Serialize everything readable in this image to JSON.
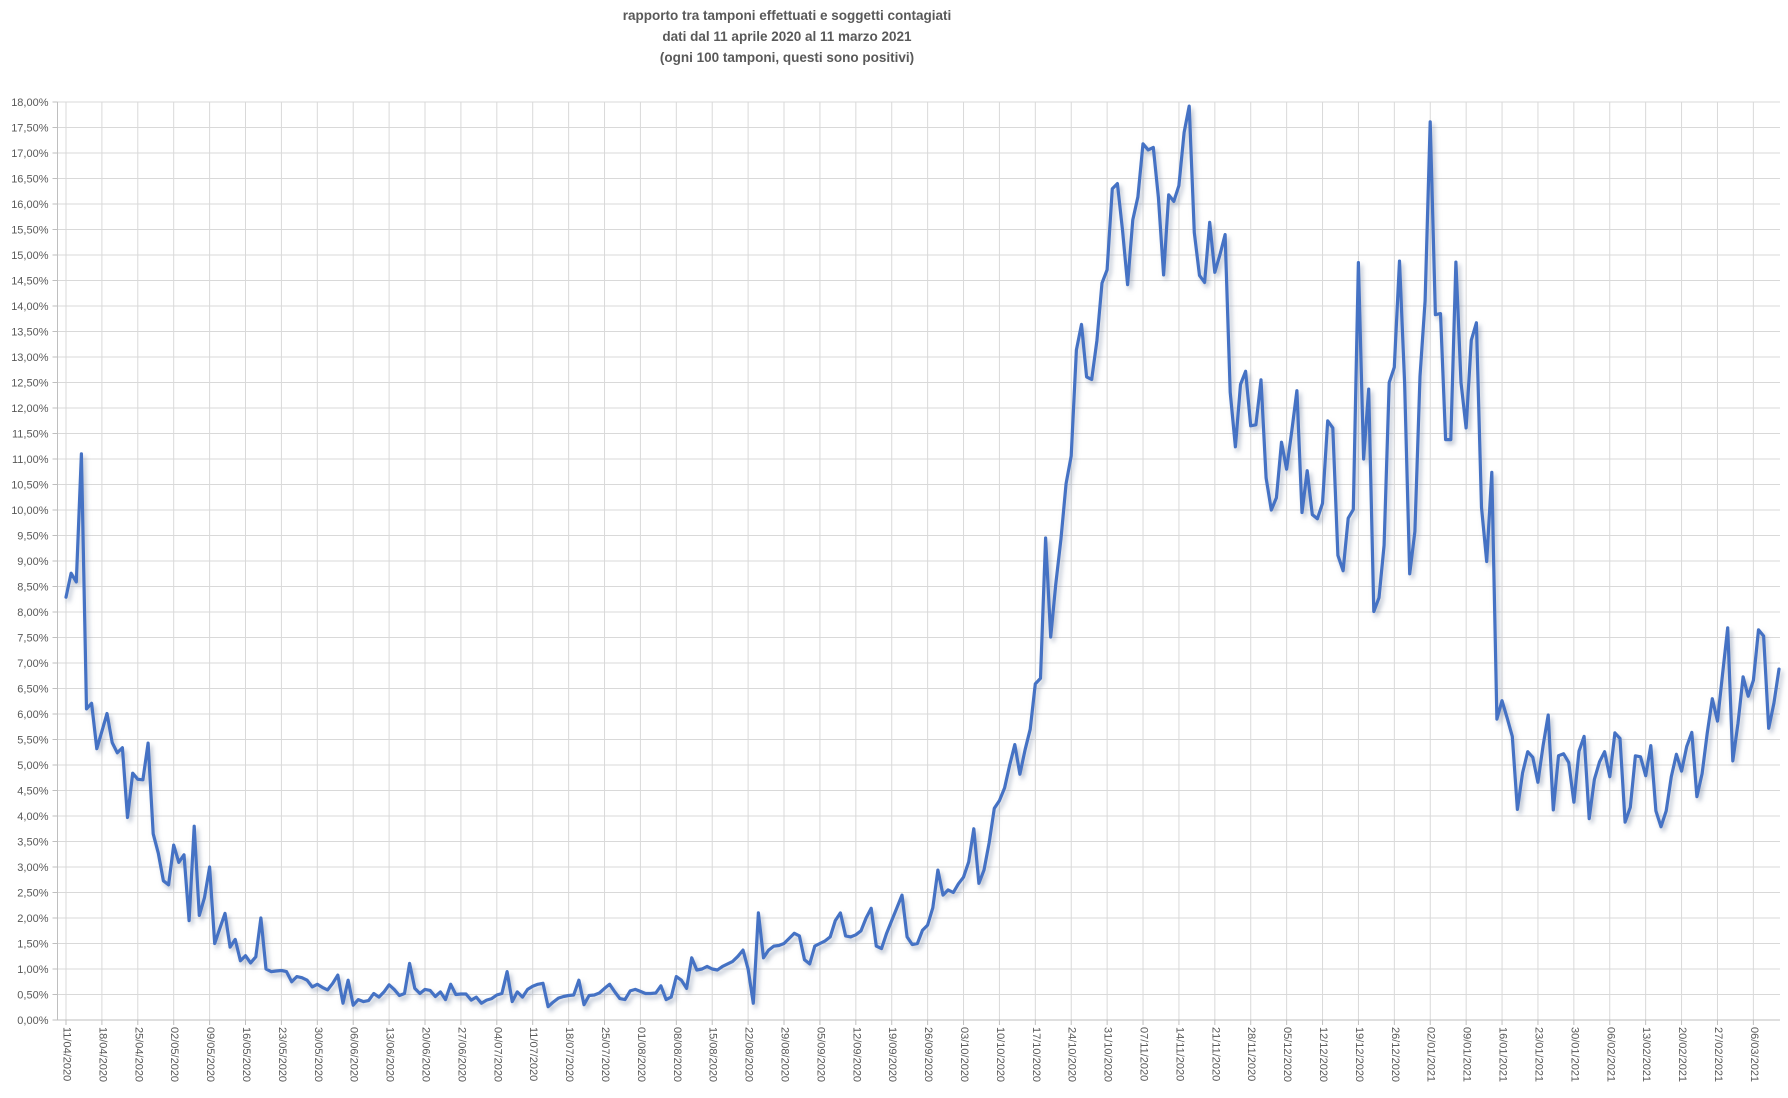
{
  "title": {
    "line1": "rapporto tra tamponi effettuati e soggetti contagiati",
    "line2": "dati dal 11 aprile 2020 al 11 marzo 2021",
    "line3": "(ogni 100 tamponi, questi sono positivi)"
  },
  "chart_data": {
    "type": "line",
    "title": "rapporto tra tamponi effettuati e soggetti contagiati",
    "subtitle": "dati dal 11 aprile 2020 al 11 marzo 2021 (ogni 100 tamponi, questi sono positivi)",
    "xlabel": "",
    "ylabel": "",
    "ylim": [
      0,
      18
    ],
    "y_step": 0.5,
    "grid": true,
    "legend": "none",
    "series_color": "#4472C4",
    "grid_color": "#d9d9d9",
    "axis_color": "#bfbfbf",
    "label_color": "#595959",
    "first_date": "11/04/2020",
    "last_date": "11/03/2021",
    "x_tick_every_days": 7,
    "y_tick_labels": [
      "18,00%",
      "17,50%",
      "17,00%",
      "16,50%",
      "16,00%",
      "15,50%",
      "15,00%",
      "14,50%",
      "14,00%",
      "13,50%",
      "13,00%",
      "12,50%",
      "12,00%",
      "11,50%",
      "11,00%",
      "10,50%",
      "10,00%",
      "9,50%",
      "9,00%",
      "8,50%",
      "8,00%",
      "7,50%",
      "7,00%",
      "6,50%",
      "6,00%",
      "5,50%",
      "5,00%",
      "4,50%",
      "4,00%",
      "3,50%",
      "3,00%",
      "2,50%",
      "2,00%",
      "1,50%",
      "1,00%",
      "0,50%",
      "0,00%"
    ],
    "x_tick_labels": [
      "11/04/2020",
      "18/04/2020",
      "25/04/2020",
      "02/05/2020",
      "09/05/2020",
      "16/05/2020",
      "23/05/2020",
      "30/05/2020",
      "06/06/2020",
      "13/06/2020",
      "20/06/2020",
      "27/06/2020",
      "04/07/2020",
      "11/07/2020",
      "18/07/2020",
      "25/07/2020",
      "01/08/2020",
      "08/08/2020",
      "15/08/2020",
      "22/08/2020",
      "29/08/2020",
      "05/09/2020",
      "12/09/2020",
      "19/09/2020",
      "26/09/2020",
      "03/10/2020",
      "10/10/2020",
      "17/10/2020",
      "24/10/2020",
      "31/10/2020",
      "07/11/2020",
      "14/11/2020",
      "21/11/2020",
      "28/11/2020",
      "05/12/2020",
      "12/12/2020",
      "19/12/2020",
      "26/12/2020",
      "02/01/2021",
      "09/01/2021",
      "16/01/2021",
      "23/01/2021",
      "30/01/2021",
      "06/02/2021",
      "13/02/2021",
      "20/02/2021",
      "27/02/2021",
      "06/03/2021"
    ],
    "values": [
      8.29,
      8.76,
      8.59,
      11.1,
      6.1,
      6.21,
      5.32,
      5.66,
      6.01,
      5.44,
      5.24,
      5.34,
      3.97,
      4.84,
      4.72,
      4.71,
      5.43,
      3.65,
      3.27,
      2.73,
      2.65,
      3.43,
      3.09,
      3.24,
      1.95,
      3.8,
      2.05,
      2.4,
      3.0,
      1.5,
      1.8,
      2.09,
      1.43,
      1.58,
      1.16,
      1.26,
      1.12,
      1.24,
      2.0,
      1.0,
      0.95,
      0.96,
      0.97,
      0.95,
      0.75,
      0.85,
      0.83,
      0.78,
      0.65,
      0.7,
      0.64,
      0.59,
      0.72,
      0.88,
      0.33,
      0.78,
      0.29,
      0.4,
      0.36,
      0.38,
      0.52,
      0.45,
      0.55,
      0.69,
      0.6,
      0.48,
      0.52,
      1.11,
      0.62,
      0.52,
      0.6,
      0.58,
      0.46,
      0.55,
      0.4,
      0.7,
      0.5,
      0.51,
      0.51,
      0.39,
      0.45,
      0.33,
      0.39,
      0.42,
      0.49,
      0.52,
      0.95,
      0.36,
      0.55,
      0.45,
      0.6,
      0.66,
      0.7,
      0.72,
      0.26,
      0.35,
      0.43,
      0.46,
      0.48,
      0.49,
      0.78,
      0.3,
      0.48,
      0.49,
      0.53,
      0.62,
      0.7,
      0.55,
      0.42,
      0.4,
      0.57,
      0.6,
      0.56,
      0.52,
      0.52,
      0.53,
      0.67,
      0.4,
      0.45,
      0.85,
      0.78,
      0.62,
      1.22,
      0.98,
      1.0,
      1.05,
      1.0,
      0.98,
      1.05,
      1.1,
      1.15,
      1.25,
      1.37,
      1.0,
      0.33,
      2.1,
      1.22,
      1.37,
      1.45,
      1.46,
      1.5,
      1.6,
      1.7,
      1.65,
      1.18,
      1.1,
      1.45,
      1.5,
      1.55,
      1.63,
      1.95,
      2.1,
      1.65,
      1.63,
      1.67,
      1.75,
      2.0,
      2.19,
      1.45,
      1.4,
      1.7,
      1.95,
      2.2,
      2.45,
      1.63,
      1.48,
      1.5,
      1.76,
      1.86,
      2.2,
      2.94,
      2.45,
      2.55,
      2.5,
      2.67,
      2.8,
      3.1,
      3.75,
      2.68,
      2.94,
      3.48,
      4.15,
      4.3,
      4.55,
      5.0,
      5.4,
      4.82,
      5.3,
      5.7,
      6.59,
      6.7,
      9.45,
      7.51,
      8.55,
      9.44,
      10.52,
      11.06,
      13.14,
      13.64,
      12.61,
      12.56,
      13.32,
      14.45,
      14.71,
      16.3,
      16.4,
      15.49,
      14.42,
      15.69,
      16.14,
      17.18,
      17.06,
      17.11,
      16.13,
      14.61,
      16.18,
      16.05,
      16.36,
      17.4,
      17.92,
      15.44,
      14.6,
      14.46,
      15.64,
      14.66,
      15.01,
      15.4,
      12.31,
      11.24,
      12.46,
      12.72,
      11.65,
      11.67,
      12.55,
      10.63,
      10.0,
      10.24,
      11.33,
      10.8,
      11.55,
      12.34,
      9.95,
      10.77,
      9.91,
      9.83,
      10.13,
      11.75,
      11.61,
      9.11,
      8.81,
      9.84,
      10.01,
      14.85,
      11.0,
      12.37,
      8.01,
      8.28,
      9.31,
      12.5,
      12.8,
      14.88,
      12.5,
      8.75,
      9.58,
      12.62,
      14.1,
      17.61,
      13.83,
      13.85,
      11.38,
      11.38,
      14.86,
      12.5,
      11.61,
      13.33,
      13.67,
      10.05,
      8.99,
      10.74,
      5.9,
      6.26,
      5.92,
      5.56,
      4.13,
      4.85,
      5.26,
      5.15,
      4.66,
      5.38,
      5.98,
      4.12,
      5.18,
      5.22,
      5.05,
      4.27,
      5.27,
      5.56,
      3.95,
      4.72,
      5.06,
      5.26,
      4.77,
      5.63,
      5.52,
      3.88,
      4.17,
      5.18,
      5.16,
      4.79,
      5.38,
      4.1,
      3.79,
      4.1,
      4.77,
      5.21,
      4.88,
      5.36,
      5.64,
      4.38,
      4.83,
      5.62,
      6.3,
      5.86,
      6.79,
      7.69,
      5.08,
      5.82,
      6.73,
      6.35,
      6.66,
      7.65,
      7.53,
      5.72,
      6.21,
      6.88
    ]
  }
}
